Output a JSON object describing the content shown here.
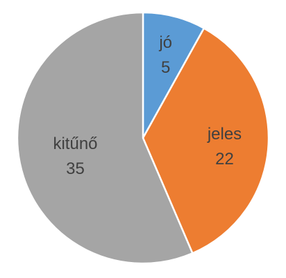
{
  "chart_data": {
    "type": "pie",
    "title": "",
    "legend": "none",
    "slices": [
      {
        "label": "jó",
        "value": 5,
        "color": "#5b9bd5"
      },
      {
        "label": "jeles",
        "value": 22,
        "color": "#ed7d31"
      },
      {
        "label": "kitűnő",
        "value": 35,
        "color": "#a5a5a5"
      }
    ]
  }
}
